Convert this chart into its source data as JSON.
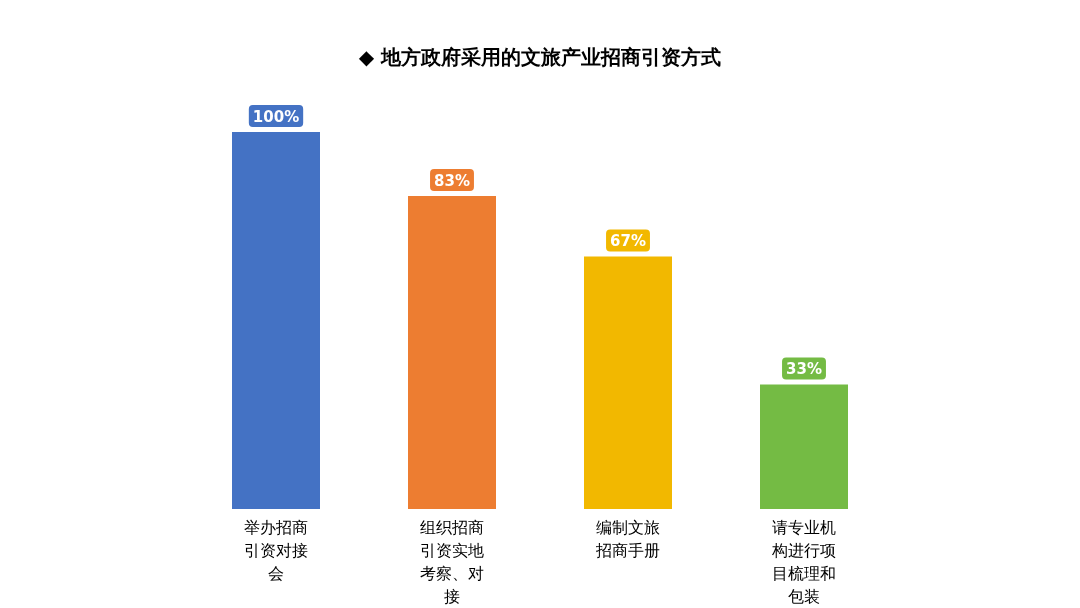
{
  "chart_data": {
    "type": "bar",
    "title": "◆ 地方政府采用的文旅产业招商引资方式",
    "categories": [
      "举办招商引资对接会",
      "组织招商引资实地考察、对接",
      "编制文旅招商手册",
      "请专业机构进行项目梳理和包装"
    ],
    "values": [
      100,
      83,
      67,
      33
    ],
    "colors": [
      "#4472c4",
      "#ed7d31",
      "#f2b800",
      "#74bb44"
    ],
    "value_labels": [
      "100%",
      "83%",
      "67%",
      "33%"
    ],
    "tick_labels": "x"
  }
}
